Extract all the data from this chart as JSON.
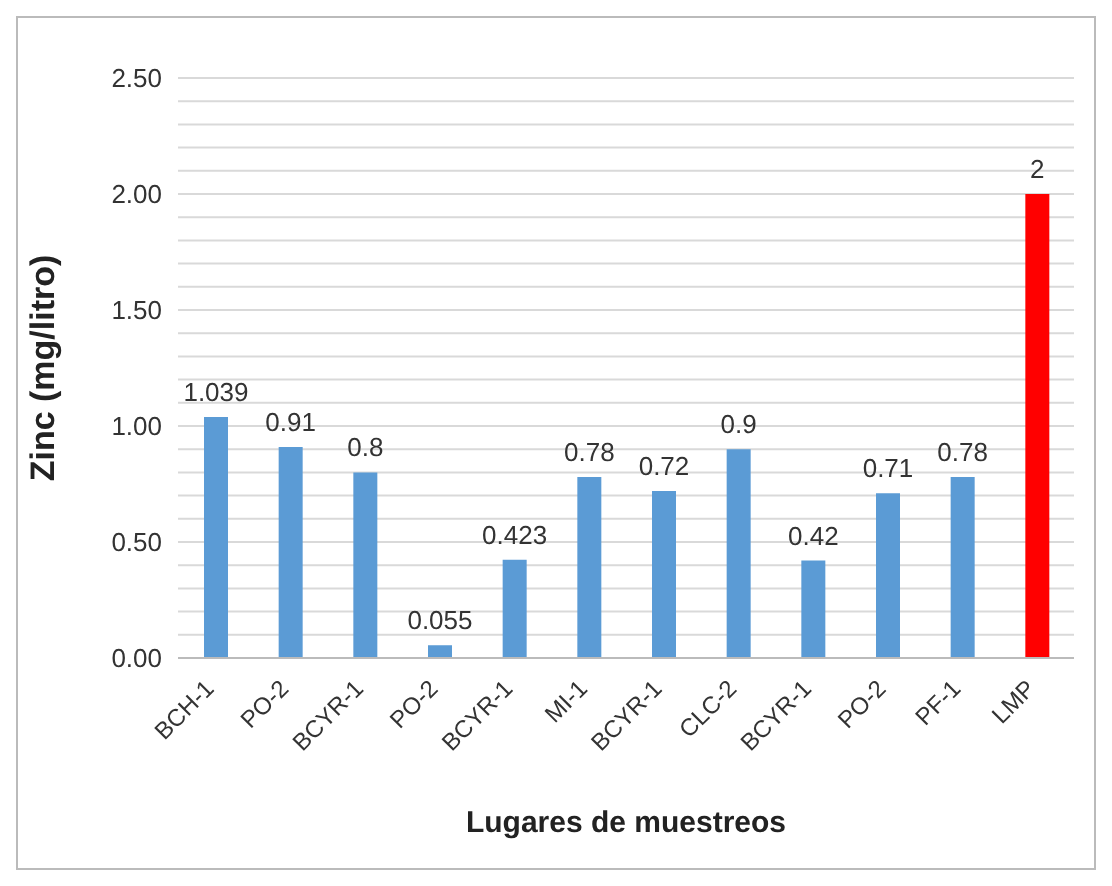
{
  "chart_data": {
    "type": "bar",
    "xlabel": "Lugares de muestreos",
    "ylabel": "Zinc (mg/litro)",
    "categories": [
      "BCH-1",
      "PO-2",
      "BCYR-1",
      "PO-2",
      "BCYR-1",
      "MI-1",
      "BCYR-1",
      "CLC-2",
      "BCYR-1",
      "PO-2",
      "PF-1",
      "LMP"
    ],
    "values": [
      1.039,
      0.91,
      0.8,
      0.055,
      0.423,
      0.78,
      0.72,
      0.9,
      0.42,
      0.71,
      0.78,
      2
    ],
    "colors": [
      "#5b9bd5",
      "#5b9bd5",
      "#5b9bd5",
      "#5b9bd5",
      "#5b9bd5",
      "#5b9bd5",
      "#5b9bd5",
      "#5b9bd5",
      "#5b9bd5",
      "#5b9bd5",
      "#5b9bd5",
      "#ff0000"
    ],
    "ylim": [
      0,
      2.5
    ],
    "yticks": [
      {
        "value": 0,
        "label": "0.00"
      },
      {
        "value": 0.1,
        "label": null
      },
      {
        "value": 0.2,
        "label": null
      },
      {
        "value": 0.3,
        "label": null
      },
      {
        "value": 0.4,
        "label": null
      },
      {
        "value": 0.5,
        "label": "0.50"
      },
      {
        "value": 0.6,
        "label": null
      },
      {
        "value": 0.7,
        "label": null
      },
      {
        "value": 0.8,
        "label": null
      },
      {
        "value": 0.9,
        "label": null
      },
      {
        "value": 1,
        "label": "1.00"
      },
      {
        "value": 1.1,
        "label": null
      },
      {
        "value": 1.2,
        "label": null
      },
      {
        "value": 1.3,
        "label": null
      },
      {
        "value": 1.4,
        "label": null
      },
      {
        "value": 1.5,
        "label": "1.50"
      },
      {
        "value": 1.6,
        "label": null
      },
      {
        "value": 1.7,
        "label": null
      },
      {
        "value": 1.8,
        "label": null
      },
      {
        "value": 1.9,
        "label": null
      },
      {
        "value": 2,
        "label": "2.00"
      },
      {
        "value": 2.1,
        "label": null
      },
      {
        "value": 2.2,
        "label": null
      },
      {
        "value": 2.3,
        "label": null
      },
      {
        "value": 2.4,
        "label": null
      },
      {
        "value": 2.5,
        "label": "2.50"
      }
    ],
    "grid": "y",
    "data_labels": true
  }
}
